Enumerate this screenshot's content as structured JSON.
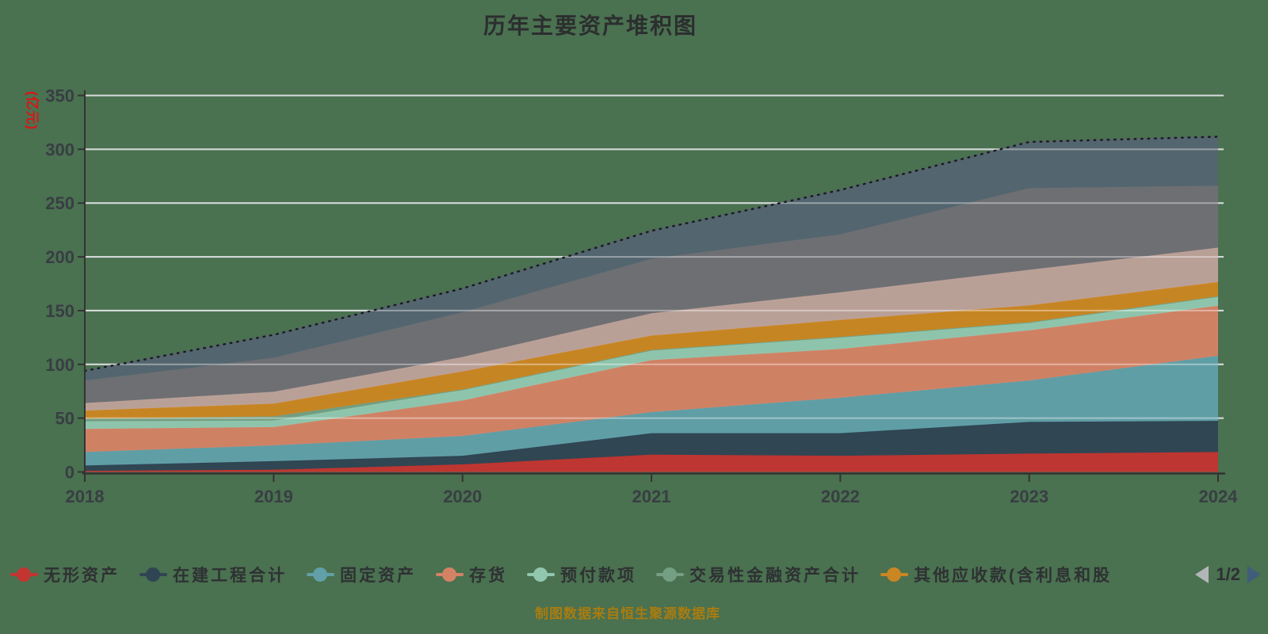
{
  "title": "历年主要资产堆积图",
  "y_axis": {
    "name": "(亿元)",
    "ticks": [
      0,
      50,
      100,
      150,
      200,
      250,
      300,
      350
    ],
    "max": 350
  },
  "x_axis": {
    "ticks": [
      "2018",
      "2019",
      "2020",
      "2021",
      "2022",
      "2023",
      "2024"
    ]
  },
  "legend": {
    "page": "1/2",
    "items": [
      {
        "label": "无形资产",
        "color": "#c23531"
      },
      {
        "label": "在建工程合计",
        "color": "#2f4554"
      },
      {
        "label": "固定资产",
        "color": "#61a0a8"
      },
      {
        "label": "存货",
        "color": "#d48265"
      },
      {
        "label": "预付款项",
        "color": "#91c7ae"
      },
      {
        "label": "交易性金融资产合计",
        "color": "#749f83"
      },
      {
        "label": "其他应收款(含利息和股",
        "color": "#ca8622"
      }
    ]
  },
  "footer": {
    "note": "制图数据来自恒生聚源数据库"
  },
  "colors": {
    "background": "#4a7150",
    "grid": "#c2c7c9",
    "grid_overlay": "rgba(255,255,255,0.38)",
    "axis": "#333333",
    "tick_label": "#383e43",
    "y_name": "#dd1414",
    "top_dashed_line": "#1c1c1c",
    "footer": "#a97c10",
    "pager_prev": "#b2b6b8",
    "pager_next": "#3f5e79"
  },
  "chart_data": {
    "type": "area",
    "stacked": true,
    "title": "历年主要资产堆积图",
    "ylabel": "(亿元)",
    "ylim": [
      0,
      350
    ],
    "grid": true,
    "legend_position": "bottom",
    "categories": [
      "2018",
      "2019",
      "2020",
      "2021",
      "2022",
      "2023",
      "2024"
    ],
    "series": [
      {
        "name": "无形资产",
        "color": "#c23531",
        "values": [
          1,
          2,
          7,
          16,
          15,
          17,
          18.5
        ]
      },
      {
        "name": "在建工程合计",
        "color": "#2f4554",
        "values": [
          5,
          8,
          8,
          20,
          21,
          29.5,
          29
        ]
      },
      {
        "name": "固定资产",
        "color": "#61a0a8",
        "values": [
          12.5,
          14.7,
          18.4,
          19.6,
          33,
          38.5,
          60.5
        ]
      },
      {
        "name": "存货",
        "color": "#d48265",
        "values": [
          21.5,
          17,
          33,
          48.3,
          45.3,
          46.6,
          46.5
        ]
      },
      {
        "name": "预付款项",
        "color": "#91c7ae",
        "values": [
          7,
          6,
          9.8,
          9.3,
          11,
          7.3,
          8.6
        ]
      },
      {
        "name": "交易性金融资产合计",
        "color": "#749f83",
        "values": [
          2.5,
          4,
          0.5,
          0.3,
          0.3,
          0.3,
          0.3
        ]
      },
      {
        "name": "其他应收款(含利息和股",
        "color": "#ca8622",
        "values": [
          7.5,
          11.8,
          16.7,
          13.2,
          15.7,
          15.6,
          13.2
        ]
      },
      {
        "name": "",
        "color": "#bda29a",
        "values": [
          7,
          11,
          13.4,
          20.8,
          25.7,
          33.1,
          31.9
        ]
      },
      {
        "name": "",
        "color": "#6e7074",
        "values": [
          21,
          31.6,
          41.7,
          50.7,
          53.9,
          76,
          57.6
        ]
      },
      {
        "name": "",
        "color": "#546570",
        "values": [
          9,
          21.4,
          22.1,
          26,
          41.2,
          42.9,
          45.6
        ]
      }
    ],
    "totals": [
      94,
      127.5,
      170.6,
      224.2,
      262.1,
      306.8,
      311.7
    ]
  }
}
